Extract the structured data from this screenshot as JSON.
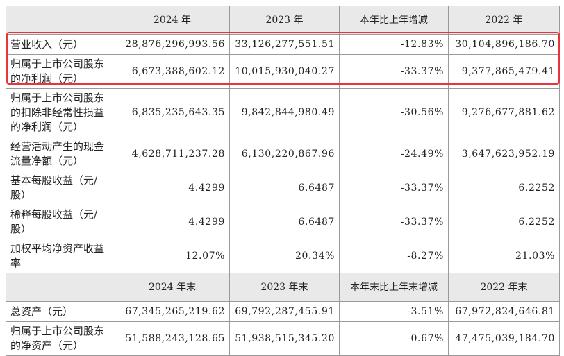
{
  "table": {
    "header": [
      "2024 年",
      "2023 年",
      "本年比上年增减",
      "2022 年"
    ],
    "rows": [
      [
        "营业收入（元）",
        "28,876,296,993.56",
        "33,126,277,551.51",
        "-12.83%",
        "30,104,896,186.70"
      ],
      [
        "归属于上市公司股东的净利润（元）",
        "6,673,388,602.12",
        "10,015,930,040.27",
        "-33.37%",
        "9,377,865,479.41"
      ],
      [
        "归属于上市公司股东的扣除非经常性损益的净利润（元）",
        "6,835,235,643.35",
        "9,842,844,980.49",
        "-30.56%",
        "9,276,677,881.62"
      ],
      [
        "经营活动产生的现金流量净额（元）",
        "4,628,711,237.28",
        "6,130,220,867.96",
        "-24.49%",
        "3,647,623,952.19"
      ],
      [
        "基本每股收益（元/股）",
        "4.4299",
        "6.6487",
        "-33.37%",
        "6.2252"
      ],
      [
        "稀释每股收益（元/股）",
        "4.4299",
        "6.6487",
        "-33.37%",
        "6.2252"
      ],
      [
        "加权平均净资产收益率",
        "12.07%",
        "20.34%",
        "-8.27%",
        "21.03%"
      ]
    ],
    "header2": [
      "2024 年末",
      "2023 年末",
      "本年末比上年末增减",
      "2022 年末"
    ],
    "rows2": [
      [
        "总资产（元）",
        "67,345,265,219.62",
        "69,792,287,455.91",
        "-3.51%",
        "67,972,824,646.81"
      ],
      [
        "归属于上市公司股东的净资产（元）",
        "51,588,243,128.65",
        "51,938,515,345.20",
        "-0.67%",
        "47,475,039,184.70"
      ]
    ]
  }
}
